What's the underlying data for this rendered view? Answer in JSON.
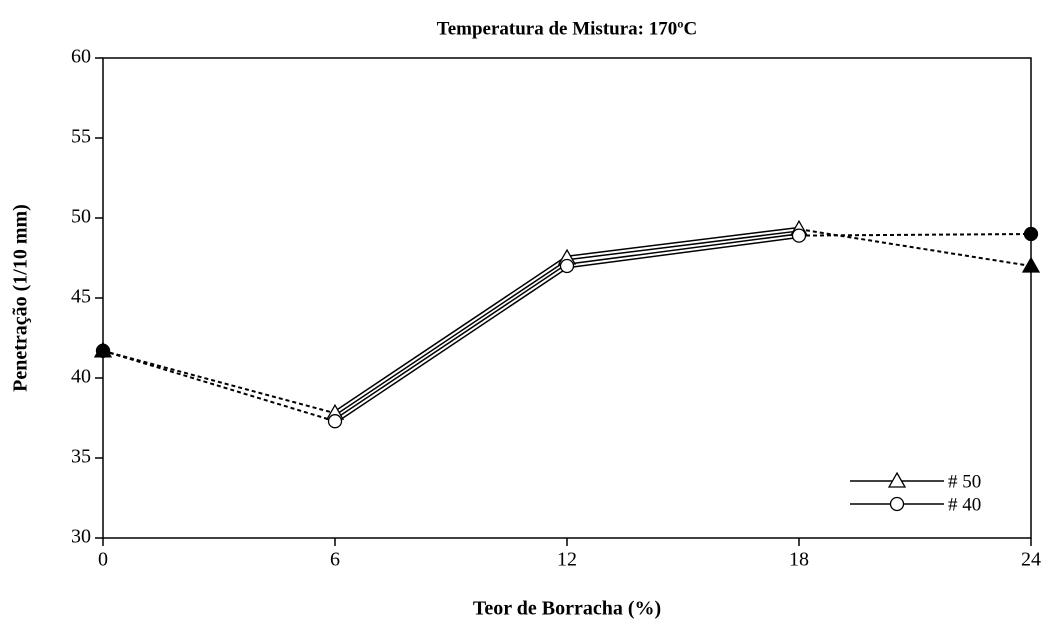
{
  "chart_data": {
    "type": "line",
    "title": "Temperatura de Mistura: 170ºC",
    "x_label": "Teor de Borracha (%)",
    "y_label": "Penetração (1/10 mm)",
    "x": [
      0,
      6,
      12,
      18,
      24
    ],
    "series": [
      {
        "name": "# 50",
        "color": "#000000",
        "marker": "triangle",
        "values": [
          41.7,
          37.8,
          47.5,
          49.3,
          47.0
        ]
      },
      {
        "name": "# 40",
        "color": "#000000",
        "marker": "circle",
        "values": [
          41.7,
          37.3,
          47.0,
          48.9,
          49.0
        ]
      }
    ],
    "xlim": [
      0,
      24
    ],
    "xticks": [
      0,
      6,
      12,
      18,
      24
    ],
    "ylim": [
      30,
      60
    ],
    "yticks": [
      30,
      35,
      40,
      45,
      50,
      55,
      60
    ],
    "legend": "lower right"
  }
}
